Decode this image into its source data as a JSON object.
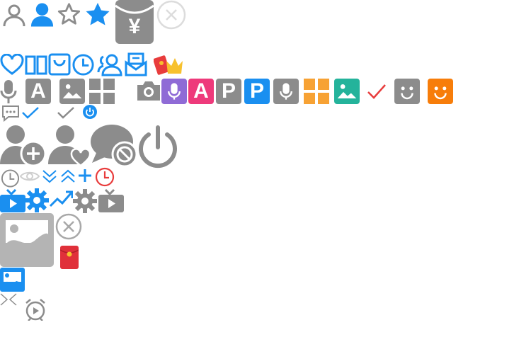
{
  "colors": {
    "gray": "#8c8c8c",
    "light_gray": "#cfcfcf",
    "blue": "#1a8ff0",
    "purple": "#8f6bd6",
    "pink": "#ee3a7b",
    "orange": "#f7a234",
    "teal": "#24b39b",
    "red": "#e83c3c"
  },
  "glyphs": {
    "letter_a": "A",
    "letter_p": "P",
    "yen": "¥"
  },
  "icons": [
    "user-outline-icon",
    "user-filled-icon",
    "star-outline-icon",
    "star-filled-icon",
    "red-packet-yen-icon",
    "close-circle-icon",
    "heart-outline-icon",
    "book-icon",
    "bag-icon",
    "clock-icon",
    "users-icon",
    "message-box-icon",
    "red-packet-crown-icon",
    "microphone-icon",
    "letter-a-icon",
    "image-icon",
    "grid-icon",
    "camera-icon",
    "voice-input-tile-icon",
    "letter-a-tile-icon",
    "letter-p-tile-icon",
    "letter-p-blue-tile-icon",
    "voice-input-gray-tile-icon",
    "apps-grid-tile-icon",
    "picture-tile-icon",
    "checkmark-red-icon",
    "smile-gray-tile-icon",
    "smile-orange-tile-icon",
    "chat-bubble-icon",
    "checkmark-blue-icon",
    "checkmark-gray-icon",
    "power-small-icon",
    "add-user-icon",
    "favorite-user-icon",
    "blocked-chat-icon",
    "power-large-icon",
    "clock-small-icon",
    "eye-icon",
    "double-chevron-down-icon",
    "double-chevron-up-icon",
    "plus-icon",
    "clock-red-icon",
    "video-tv-blue-icon",
    "gear-blue-icon",
    "trend-up-icon",
    "gear-gray-icon",
    "video-tv-gray-icon",
    "image-placeholder-icon",
    "close-circle-small-icon",
    "red-packet-small-icon",
    "image-blue-icon",
    "collapse-icon",
    "alarm-clock-icon"
  ]
}
